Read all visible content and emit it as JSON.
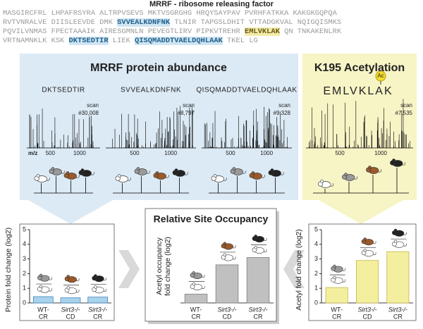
{
  "figure_title": "MRRF - ribosome releasing factor",
  "sequence": [
    [
      {
        "text": "MASGIRCFRL LHPAFRSYRA ALTRPVSEVS MKTVSGRGHG HRQYSAYPAV PVRHFATKKA KAKGKGQPQA"
      }
    ],
    [
      {
        "text": "RVTVNRALVE DIISLEEVDE DMK "
      },
      {
        "text": "SVVEALKDNFNK",
        "highlight": "blue"
      },
      {
        "text": " TLNIR TAPGSLDHIT VTTADGKVAL NQIGQISMKS"
      }
    ],
    [
      {
        "text": "PQVILVNMAS FPECTAAAIK AIRESGMNLN PEVEGTLIRV PIPKVTREHR "
      },
      {
        "text": "EMLVKLAK",
        "highlight": "yellow"
      },
      {
        "text": " QN TNKAKENLRK"
      }
    ],
    [
      {
        "text": "VRTNAMNKLK KSK "
      },
      {
        "text": "DKTSEDTIR",
        "highlight": "blue"
      },
      {
        "text": " LIEK "
      },
      {
        "text": "QISQMADDTVAELDQHLAAK",
        "highlight": "blue"
      },
      {
        "text": " TKEL LG"
      }
    ]
  ],
  "abundance": {
    "title": "MRRF protein abundance",
    "axis_label": "m/z",
    "axis_ticks": [
      "500",
      "1000"
    ],
    "spectra": [
      {
        "peptide": "DKTSEDTIR",
        "scan_label": "scan",
        "scan": "#30,008"
      },
      {
        "peptide": "SVVEALKDNFNK",
        "scan_label": "scan",
        "scan": "#8,797"
      },
      {
        "peptide": "QISQMADDTVAELDQHLAAK",
        "scan_label": "scan",
        "scan": "#9,328"
      }
    ]
  },
  "acetylation": {
    "title": "K195 Acetylation",
    "modification": "Ac",
    "peptide": "EMLVKLAK",
    "scan_label": "scan",
    "scan": "#7,535"
  },
  "chart_data": [
    {
      "type": "bar",
      "y_label": "Protein fold change (log2)",
      "categories": [
        [
          "WT-",
          "CR"
        ],
        [
          "Sirt3-/-",
          "CD"
        ],
        [
          "Sirt3-/-",
          "CR"
        ]
      ],
      "values": [
        0.43,
        0.35,
        0.4
      ],
      "color": "#a9d2ec",
      "ylim": [
        0,
        5
      ],
      "yticks": [
        0,
        1,
        2,
        3,
        4,
        5
      ]
    },
    {
      "type": "bar",
      "title": "Relative Site Occupancy",
      "y_label": [
        "Acetyl occupancy",
        "fold change (log2)"
      ],
      "categories": [
        [
          "WT-",
          "CR"
        ],
        [
          "Sirt3-/-",
          "CD"
        ],
        [
          "Sirt3-/-",
          "CR"
        ]
      ],
      "values": [
        0.6,
        2.6,
        3.1
      ],
      "color": "#c0c0c0",
      "ylim": [
        0,
        5
      ]
    },
    {
      "type": "bar",
      "y_label": "Acetyl fold change (log2)",
      "categories": [
        [
          "WT-",
          "CR"
        ],
        [
          "Sirt3-/-",
          "CD"
        ],
        [
          "Sirt3-/-",
          "CR"
        ]
      ],
      "values": [
        1.05,
        2.9,
        3.5
      ],
      "color": "#f4ef9e",
      "ylim": [
        0,
        5
      ],
      "yticks": [
        0,
        1,
        2,
        3,
        4,
        5
      ]
    }
  ]
}
